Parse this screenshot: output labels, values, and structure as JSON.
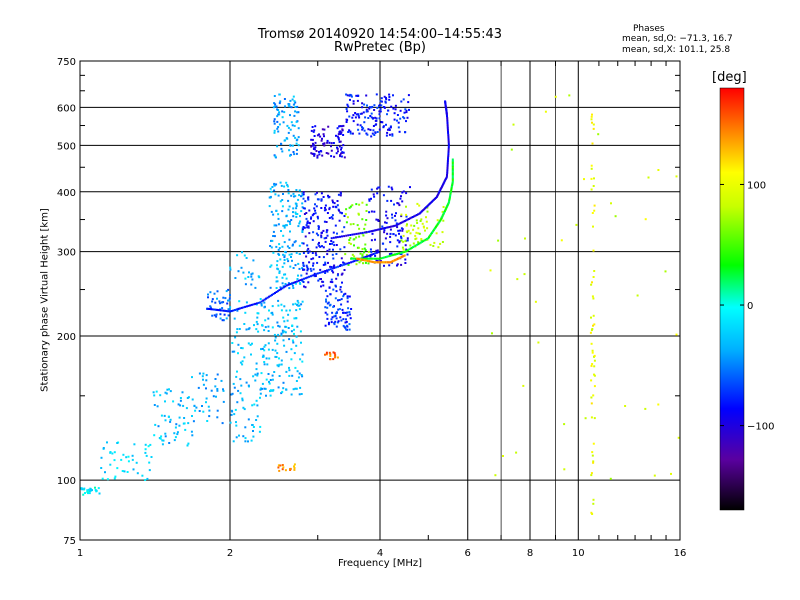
{
  "title": {
    "line1": "Tromsø 20140920 14:54:00–14:55:43",
    "line2": "RwPretec (Bp)"
  },
  "phases": {
    "title": "Phases",
    "o_mode": "mean, sd,O: −71.3, 16.7",
    "x_mode": "mean, sd,X: 101.1, 25.8"
  },
  "colorbar": {
    "label": "[deg]",
    "ticks": [
      "100",
      "0",
      "−100"
    ],
    "tick_values": [
      100,
      0,
      -100
    ],
    "range": [
      -170,
      180
    ]
  },
  "chart_data": {
    "type": "scatter",
    "xlabel": "Frequency [MHz]",
    "ylabel": "Stationary phase Virtual Height [km]",
    "x_scale": "log",
    "y_scale": "log",
    "xlim": [
      1,
      16
    ],
    "ylim": [
      75,
      750
    ],
    "xticks": [
      1,
      2,
      4,
      6,
      8,
      10,
      16
    ],
    "xtick_labels": [
      "1",
      "2",
      "4",
      "6",
      "8",
      "10",
      "16"
    ],
    "yticks": [
      75,
      100,
      200,
      300,
      400,
      500,
      600,
      750
    ],
    "ytick_labels": [
      "75",
      "100",
      "200",
      "300",
      "400",
      "500",
      "600",
      "750"
    ],
    "grid": true,
    "color_encoding": "phase [deg]",
    "clusters": [
      {
        "xrange": [
          1.0,
          1.1
        ],
        "yrange": [
          93,
          97
        ],
        "phase": -10,
        "count": 25
      },
      {
        "xrange": [
          1.1,
          1.4
        ],
        "yrange": [
          100,
          120
        ],
        "phase": -20,
        "count": 45
      },
      {
        "xrange": [
          1.4,
          1.7
        ],
        "yrange": [
          118,
          155
        ],
        "phase": -30,
        "count": 60
      },
      {
        "xrange": [
          1.65,
          1.95
        ],
        "yrange": [
          130,
          170
        ],
        "phase": -35,
        "count": 40
      },
      {
        "xrange": [
          1.8,
          2.0
        ],
        "yrange": [
          215,
          250
        ],
        "phase": -55,
        "count": 40
      },
      {
        "xrange": [
          2.0,
          2.3
        ],
        "yrange": [
          120,
          300
        ],
        "phase": -30,
        "count": 120
      },
      {
        "xrange": [
          2.3,
          2.8
        ],
        "yrange": [
          150,
          240
        ],
        "phase": -30,
        "count": 160
      },
      {
        "xrange": [
          2.4,
          2.8
        ],
        "yrange": [
          250,
          420
        ],
        "phase": -35,
        "count": 170
      },
      {
        "xrange": [
          2.45,
          2.75
        ],
        "yrange": [
          470,
          640
        ],
        "phase": -40,
        "count": 90
      },
      {
        "xrange": [
          2.8,
          3.4
        ],
        "yrange": [
          250,
          400
        ],
        "phase": -85,
        "count": 210
      },
      {
        "xrange": [
          2.9,
          3.4
        ],
        "yrange": [
          470,
          550
        ],
        "phase": -100,
        "count": 90
      },
      {
        "xrange": [
          3.1,
          3.5
        ],
        "yrange": [
          205,
          250
        ],
        "phase": -70,
        "count": 80
      },
      {
        "xrange": [
          3.4,
          4.6
        ],
        "yrange": [
          520,
          640
        ],
        "phase": -80,
        "count": 160
      },
      {
        "xrange": [
          3.4,
          3.8
        ],
        "yrange": [
          280,
          380
        ],
        "phase": 60,
        "count": 60
      },
      {
        "xrange": [
          3.8,
          4.6
        ],
        "yrange": [
          280,
          410
        ],
        "phase": -90,
        "count": 110
      },
      {
        "xrange": [
          4.4,
          5.4
        ],
        "yrange": [
          300,
          380
        ],
        "phase": 80,
        "count": 60
      },
      {
        "xrange": [
          2.5,
          2.7
        ],
        "yrange": [
          103,
          108
        ],
        "phase": 140,
        "count": 15
      },
      {
        "xrange": [
          3.1,
          3.3
        ],
        "yrange": [
          178,
          185
        ],
        "phase": 150,
        "count": 15
      },
      {
        "xrange": [
          10.6,
          10.8
        ],
        "yrange": [
          85,
          600
        ],
        "phase": 100,
        "count": 60
      },
      {
        "xrange": [
          6.1,
          16.0
        ],
        "yrange": [
          90,
          650
        ],
        "phase": 90,
        "count": 40
      }
    ],
    "traces": [
      {
        "name": "",
        "phase": -80,
        "points": [
          [
            1.8,
            228
          ],
          [
            2.0,
            225
          ],
          [
            2.3,
            235
          ],
          [
            2.6,
            255
          ],
          [
            3.0,
            270
          ],
          [
            3.5,
            285
          ],
          [
            4.0,
            300
          ]
        ]
      },
      {
        "name": "",
        "phase": 30,
        "points": [
          [
            3.5,
            290
          ],
          [
            4.0,
            290
          ],
          [
            4.5,
            300
          ],
          [
            5.0,
            320
          ],
          [
            5.3,
            350
          ],
          [
            5.5,
            380
          ],
          [
            5.6,
            420
          ],
          [
            5.6,
            470
          ]
        ]
      },
      {
        "name": "",
        "phase": -95,
        "points": [
          [
            3.2,
            320
          ],
          [
            3.8,
            330
          ],
          [
            4.3,
            340
          ],
          [
            4.8,
            360
          ],
          [
            5.2,
            390
          ],
          [
            5.45,
            430
          ],
          [
            5.5,
            500
          ],
          [
            5.45,
            580
          ],
          [
            5.4,
            620
          ]
        ]
      },
      {
        "name": "",
        "phase": 140,
        "points": [
          [
            3.6,
            290
          ],
          [
            3.9,
            285
          ],
          [
            4.2,
            285
          ],
          [
            4.5,
            295
          ]
        ]
      }
    ]
  }
}
